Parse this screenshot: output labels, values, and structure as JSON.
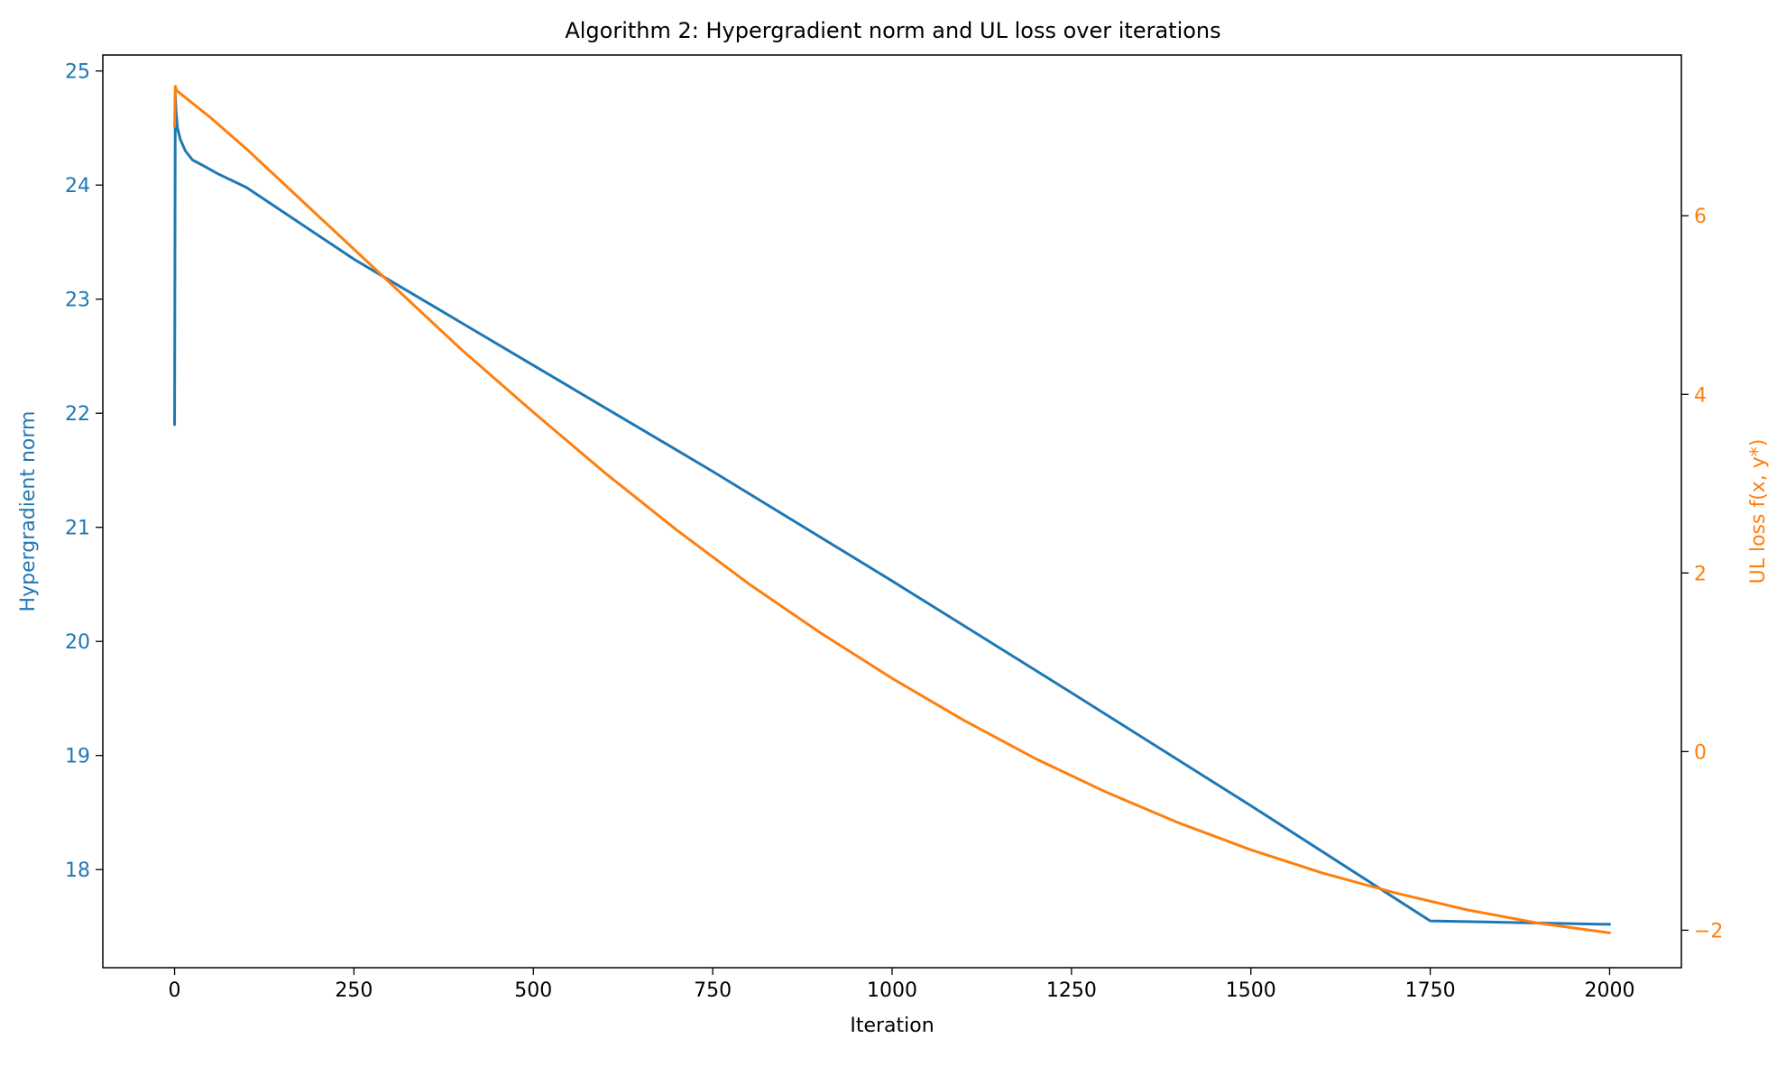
{
  "chart_data": {
    "type": "line",
    "title": "Algorithm 2: Hypergradient norm and UL loss over iterations",
    "xlabel": "Iteration",
    "ylabel_left": "Hypergradient norm",
    "ylabel_right": "UL loss f(x, y*)",
    "xlim": [
      -100,
      2100
    ],
    "ylim_left": [
      17.14,
      25.14
    ],
    "ylim_right": [
      -2.42,
      7.8
    ],
    "xticks": [
      "0",
      "250",
      "500",
      "750",
      "1000",
      "1250",
      "1500",
      "1750",
      "2000"
    ],
    "yticks_left": [
      "18",
      "19",
      "20",
      "21",
      "22",
      "23",
      "24",
      "25"
    ],
    "yticks_right": [
      "−2",
      "0",
      "2",
      "4",
      "6"
    ],
    "grid": false,
    "series": [
      {
        "axis": "left",
        "color": "#1f77b4",
        "x": [
          0,
          1,
          2,
          4,
          8,
          15,
          25,
          40,
          60,
          100,
          200,
          250,
          500,
          750,
          1000,
          1250,
          1500,
          1750,
          2000
        ],
        "y": [
          21.9,
          24.8,
          24.65,
          24.5,
          24.4,
          24.3,
          24.22,
          24.17,
          24.1,
          23.98,
          23.56,
          23.35,
          22.42,
          21.49,
          20.53,
          19.55,
          18.56,
          17.55,
          17.52
        ]
      },
      {
        "axis": "right",
        "color": "#ff7f0e",
        "x": [
          0,
          1,
          2,
          3,
          50,
          100,
          200,
          300,
          400,
          500,
          600,
          700,
          800,
          900,
          1000,
          1100,
          1200,
          1300,
          1400,
          1500,
          1600,
          1700,
          1800,
          1900,
          2000
        ],
        "y": [
          7.0,
          7.45,
          7.42,
          7.4,
          7.1,
          6.75,
          6.0,
          5.25,
          4.5,
          3.8,
          3.12,
          2.48,
          1.88,
          1.33,
          0.82,
          0.35,
          -0.08,
          -0.46,
          -0.8,
          -1.1,
          -1.36,
          -1.58,
          -1.77,
          -1.92,
          -2.03
        ]
      }
    ]
  }
}
